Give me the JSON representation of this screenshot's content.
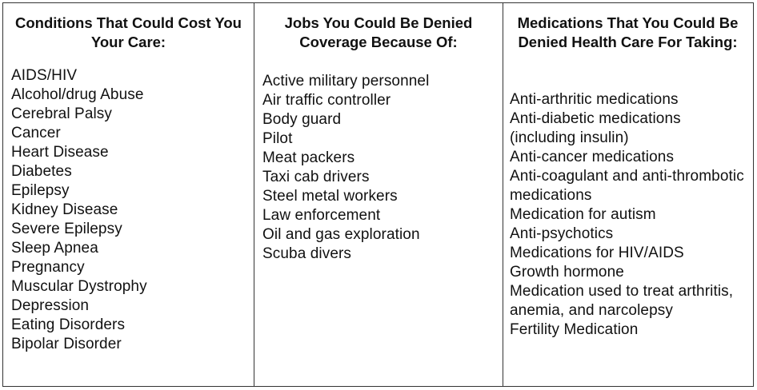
{
  "columns": [
    {
      "heading": "Conditions That Could Cost You Your Care:",
      "items": [
        "AIDS/HIV",
        "Alcohol/drug Abuse",
        "Cerebral Palsy",
        "Cancer",
        "Heart Disease",
        "Diabetes",
        "Epilepsy",
        "Kidney Disease",
        "Severe Epilepsy",
        "Sleep Apnea",
        "Pregnancy",
        "Muscular Dystrophy",
        "Depression",
        "Eating Disorders",
        "Bipolar Disorder"
      ]
    },
    {
      "heading": "Jobs You Could Be Denied Coverage Because Of:",
      "items": [
        "Active military personnel",
        "Air traffic controller",
        "Body guard",
        "Pilot",
        "Meat packers",
        "Taxi cab drivers",
        "Steel metal workers",
        "Law enforcement",
        "Oil and gas exploration",
        "Scuba divers"
      ]
    },
    {
      "heading": "Medications That You Could Be Denied Health Care For Taking:",
      "items": [
        "Anti-arthritic medications",
        "Anti-diabetic medications (including insulin)",
        "Anti-cancer medications",
        "Anti-coagulant and anti-thrombotic medications",
        "Medication for autism",
        "Anti-psychotics",
        "Medications for HIV/AIDS",
        "Growth hormone",
        "Medication used to treat arthritis, anemia, and narcolepsy",
        "Fertility Medication"
      ]
    }
  ]
}
